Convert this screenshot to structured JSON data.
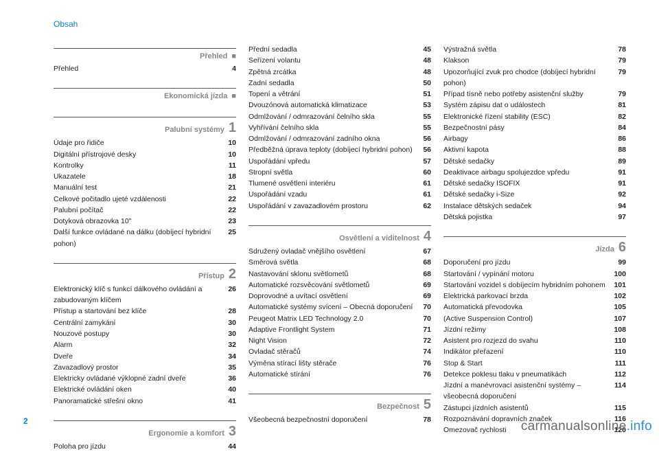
{
  "sectionTitle": "Obsah",
  "pageNumber": "2",
  "watermark": {
    "part1": "carmanualsonline",
    "part2": ".info"
  },
  "columns": [
    {
      "blocks": [
        {
          "type": "chapter",
          "title": "Přehled",
          "numType": "bullet"
        },
        {
          "type": "row",
          "label": "Přehled",
          "page": "4"
        },
        {
          "type": "spacer"
        },
        {
          "type": "chapter",
          "title": "Ekonomická jízda",
          "numType": "bullet"
        },
        {
          "type": "spacer"
        },
        {
          "type": "chapter",
          "title": "Palubní systémy",
          "num": "1"
        },
        {
          "type": "row",
          "label": "Údaje pro řidiče",
          "page": "10"
        },
        {
          "type": "row",
          "label": "Digitální přístrojové desky",
          "page": "10"
        },
        {
          "type": "row",
          "label": "Kontrolky",
          "page": "11"
        },
        {
          "type": "row",
          "label": "Ukazatele",
          "page": "18"
        },
        {
          "type": "row",
          "label": "Manuální test",
          "page": "21"
        },
        {
          "type": "row",
          "label": "Celkové počitadlo ujeté vzdálenosti",
          "page": "22"
        },
        {
          "type": "row",
          "label": "Palubní počítač",
          "page": "22"
        },
        {
          "type": "row",
          "label": "Dotyková obrazovka 10\"",
          "page": "23"
        },
        {
          "type": "row",
          "label": "Další funkce ovládané na dálku (dobíjecí hybridní pohon)",
          "page": "25"
        },
        {
          "type": "spacer"
        },
        {
          "type": "chapter",
          "title": "Přístup",
          "num": "2"
        },
        {
          "type": "row",
          "label": "Elektronický klíč s funkcí dálkového ovládání a zabudovaným klíčem",
          "page": "26"
        },
        {
          "type": "row",
          "label": "Přístup a startování bez klíče",
          "page": "28"
        },
        {
          "type": "row",
          "label": "Centrální zamykání",
          "page": "30"
        },
        {
          "type": "row",
          "label": "Nouzové postupy",
          "page": "30"
        },
        {
          "type": "row",
          "label": "Alarm",
          "page": "32"
        },
        {
          "type": "row",
          "label": "Dveře",
          "page": "34"
        },
        {
          "type": "row",
          "label": "Zavazadlový prostor",
          "page": "35"
        },
        {
          "type": "row",
          "label": "Elektricky ovládané výklopné zadní dveře",
          "page": "36"
        },
        {
          "type": "row",
          "label": "Elektrické ovládání oken",
          "page": "40"
        },
        {
          "type": "row",
          "label": "Panoramatické střešní okno",
          "page": "41"
        },
        {
          "type": "spacer"
        },
        {
          "type": "chapter",
          "title": "Ergonomie a komfort",
          "num": "3"
        },
        {
          "type": "row",
          "label": "Poloha pro jízdu",
          "page": "44"
        }
      ]
    },
    {
      "blocks": [
        {
          "type": "row",
          "label": "Přední sedadla",
          "page": "45"
        },
        {
          "type": "row",
          "label": "Seřízení volantu",
          "page": "48"
        },
        {
          "type": "row",
          "label": "Zpětná zrcátka",
          "page": "48"
        },
        {
          "type": "row",
          "label": "Zadní sedadla",
          "page": "50"
        },
        {
          "type": "row",
          "label": "Topení a větrání",
          "page": "51"
        },
        {
          "type": "row",
          "label": "Dvouzónová automatická klimatizace",
          "page": "53"
        },
        {
          "type": "row",
          "label": "Odmlžování / odmrazování čelního skla",
          "page": "55"
        },
        {
          "type": "row",
          "label": "Vyhřívání čelního skla",
          "page": "55"
        },
        {
          "type": "row",
          "label": "Odmlžování / odmrazování zadního okna",
          "page": "56"
        },
        {
          "type": "row",
          "label": "Předběžná úprava teploty (dobíjecí hybridní pohon)",
          "page": "56"
        },
        {
          "type": "row",
          "label": "Uspořádání vpředu",
          "page": "57"
        },
        {
          "type": "row",
          "label": "Stropní světla",
          "page": "60"
        },
        {
          "type": "row",
          "label": "Tlumené osvětlení interiéru",
          "page": "61"
        },
        {
          "type": "row",
          "label": "Uspořádání vzadu",
          "page": "61"
        },
        {
          "type": "row",
          "label": "Uspořádání v zavazadlovém prostoru",
          "page": "62"
        },
        {
          "type": "spacer"
        },
        {
          "type": "chapter",
          "title": "Osvětlení a viditelnost",
          "num": "4"
        },
        {
          "type": "row",
          "label": "Sdružený ovladač vnějšího osvětlení",
          "page": "67"
        },
        {
          "type": "row",
          "label": "Směrová světla",
          "page": "68"
        },
        {
          "type": "row",
          "label": "Nastavování sklonu světlometů",
          "page": "68"
        },
        {
          "type": "row",
          "label": "Automatické rozsvěcování světlometů",
          "page": "69"
        },
        {
          "type": "row",
          "label": "Doprovodné a uvítací osvětlení",
          "page": "69"
        },
        {
          "type": "row",
          "label": "Automatické systémy svícení – Obecná doporučení",
          "page": "70"
        },
        {
          "type": "row",
          "label": "Peugeot Matrix LED Technology 2.0",
          "page": "70"
        },
        {
          "type": "row",
          "label": "Adaptive Frontlight System",
          "page": "71"
        },
        {
          "type": "row",
          "label": "Night Vision",
          "page": "72"
        },
        {
          "type": "row",
          "label": "Ovladač stěračů",
          "page": "74"
        },
        {
          "type": "row",
          "label": "Výměna stírací lišty stěrače",
          "page": "76"
        },
        {
          "type": "row",
          "label": "Automatické stírání",
          "page": "76"
        },
        {
          "type": "spacer"
        },
        {
          "type": "chapter",
          "title": "Bezpečnost",
          "num": "5"
        },
        {
          "type": "row",
          "label": "Všeobecná bezpečnostní doporučení",
          "page": "78"
        }
      ]
    },
    {
      "blocks": [
        {
          "type": "row",
          "label": "Výstražná světla",
          "page": "78"
        },
        {
          "type": "row",
          "label": "Klakson",
          "page": "79"
        },
        {
          "type": "row",
          "label": "Upozorňující zvuk pro chodce (dobíjecí hybridní pohon)",
          "page": "79"
        },
        {
          "type": "row",
          "label": "Případ tísně nebo potřeby asistenční služby",
          "page": "79"
        },
        {
          "type": "row",
          "label": "Systém zápisu dat o událostech",
          "page": "81"
        },
        {
          "type": "row",
          "label": "Elektronické řízení stability (ESC)",
          "page": "82"
        },
        {
          "type": "row",
          "label": "Bezpečnostní pásy",
          "page": "84"
        },
        {
          "type": "row",
          "label": "Airbagy",
          "page": "86"
        },
        {
          "type": "row",
          "label": "Aktivní kapota",
          "page": "88"
        },
        {
          "type": "row",
          "label": "Dětské sedačky",
          "page": "89"
        },
        {
          "type": "row",
          "label": "Deaktivace airbagu spolujezdce vpředu",
          "page": "91"
        },
        {
          "type": "row",
          "label": "Dětské sedačky ISOFIX",
          "page": "91"
        },
        {
          "type": "row",
          "label": "Dětské sedačky i-Size",
          "page": "92"
        },
        {
          "type": "row",
          "label": "Instalace dětských sedaček",
          "page": "94"
        },
        {
          "type": "row",
          "label": "Dětská pojistka",
          "page": "97"
        },
        {
          "type": "spacer"
        },
        {
          "type": "chapter",
          "title": "Jízda",
          "num": "6"
        },
        {
          "type": "row",
          "label": "Doporučení pro jízdu",
          "page": "99"
        },
        {
          "type": "row",
          "label": "Startování / vypínání motoru",
          "page": "100"
        },
        {
          "type": "row",
          "label": "Startování vozidel s dobíjecím hybridním pohonem",
          "page": "101"
        },
        {
          "type": "row",
          "label": "Elektrická parkovací brzda",
          "page": "102"
        },
        {
          "type": "row",
          "label": "Automatická převodovka",
          "page": "105"
        },
        {
          "type": "row",
          "label": "(Active Suspension Control)",
          "page": "107"
        },
        {
          "type": "row",
          "label": "Jízdní režimy",
          "page": "108"
        },
        {
          "type": "row",
          "label": "Asistent pro rozjezd do svahu",
          "page": "110"
        },
        {
          "type": "row",
          "label": "Indikátor přeřazení",
          "page": "110"
        },
        {
          "type": "row",
          "label": "Stop & Start",
          "page": "111"
        },
        {
          "type": "row",
          "label": "Detekce poklesu tlaku v pneumatikách",
          "page": "112"
        },
        {
          "type": "row",
          "label": "Jízdní a manévrovací asistenční systémy – všeobecná doporučení",
          "page": "114"
        },
        {
          "type": "row",
          "label": "Zástupci jízdních asistentů",
          "page": "115"
        },
        {
          "type": "row",
          "label": "Rozpoznávání dopravních značek",
          "page": "116"
        },
        {
          "type": "row",
          "label": "Omezovač rychlosti",
          "page": "120"
        }
      ]
    }
  ]
}
